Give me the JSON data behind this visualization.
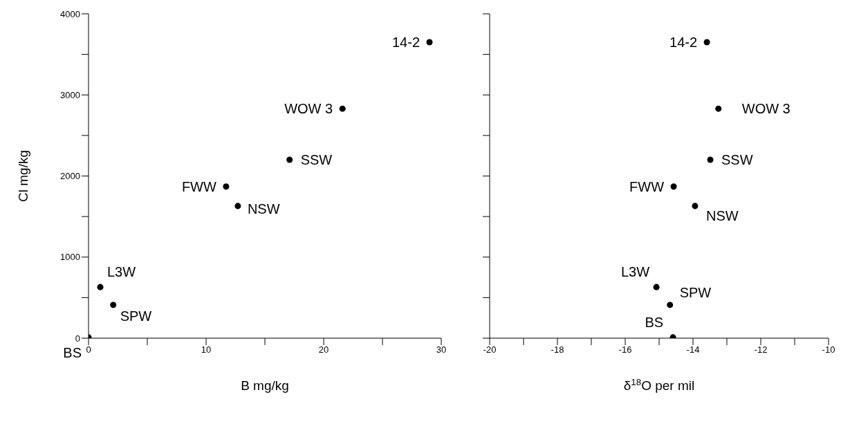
{
  "chart_data": [
    {
      "type": "scatter",
      "xlabel": "B mg/kg",
      "ylabel": "Cl mg/kg",
      "marker": "circle",
      "grid": false,
      "legend": false,
      "x": [
        29,
        21.6,
        17.1,
        11.7,
        12.7,
        1.0,
        2.1,
        0
      ],
      "series": [
        {
          "color": "#000000",
          "values": [
            3650,
            2830,
            2200,
            1870,
            1630,
            630,
            410,
            10
          ]
        }
      ],
      "xlim": [
        0,
        30
      ],
      "xticks": [
        0,
        {
          "value": 5,
          "label": null
        },
        10,
        {
          "value": 15,
          "label": null
        },
        20,
        {
          "value": 25,
          "label": null
        },
        30
      ],
      "ylim": [
        0,
        4000
      ],
      "yticks": [
        0,
        {
          "value": 500,
          "label": null
        },
        1000,
        {
          "value": 1500,
          "label": null
        },
        2000,
        {
          "value": 2500,
          "label": null
        },
        3000,
        {
          "value": 3500,
          "label": null
        },
        4000
      ],
      "annotations": [
        {
          "text": "14-2",
          "x": 29,
          "y": 3650
        },
        {
          "text": "WOW 3",
          "x": 21.6,
          "y": 2830
        },
        {
          "text": "SSW",
          "x": 17.1,
          "y": 2200
        },
        {
          "text": "FWW",
          "x": 11.7,
          "y": 1870
        },
        {
          "text": "NSW",
          "x": 12.7,
          "y": 1630
        },
        {
          "text": "L3W",
          "x": 1.0,
          "y": 630
        },
        {
          "text": "SPW",
          "x": 2.1,
          "y": 410
        },
        {
          "text": "BS",
          "x": 0,
          "y": 10
        }
      ]
    },
    {
      "type": "scatter",
      "xlabel": "δ$^{18}$O per mil",
      "marker": "circle",
      "grid": false,
      "legend": false,
      "tick_labels": "x",
      "x": [
        -13.59,
        -13.25,
        -13.49,
        -14.57,
        -13.94,
        -15.08,
        -14.68,
        -14.59
      ],
      "series": [
        {
          "color": "#000000",
          "values": [
            3650,
            2830,
            2200,
            1870,
            1630,
            630,
            410,
            10
          ]
        }
      ],
      "xlim": [
        -20,
        -10
      ],
      "xticks": [
        -20,
        {
          "value": -19,
          "label": null
        },
        -18,
        {
          "value": -17,
          "label": null
        },
        -16,
        {
          "value": -15,
          "label": null
        },
        -14,
        {
          "value": -13,
          "label": null
        },
        -12,
        {
          "value": -11,
          "label": null
        },
        -10
      ],
      "ylim": [
        0,
        4000
      ],
      "yticks": [
        0,
        {
          "value": 500,
          "label": null
        },
        1000,
        {
          "value": 1500,
          "label": null
        },
        2000,
        {
          "value": 2500,
          "label": null
        },
        3000,
        {
          "value": 3500,
          "label": null
        },
        4000
      ],
      "annotations": [
        {
          "text": "14-2",
          "x": -13.59,
          "y": 3650
        },
        {
          "text": "WOW 3",
          "x": -13.25,
          "y": 2830
        },
        {
          "text": "SSW",
          "x": -13.49,
          "y": 2200
        },
        {
          "text": "FWW",
          "x": -14.57,
          "y": 1870
        },
        {
          "text": "NSW",
          "x": -13.94,
          "y": 1630
        },
        {
          "text": "L3W",
          "x": -15.08,
          "y": 630
        },
        {
          "text": "SPW",
          "x": -14.68,
          "y": 410
        },
        {
          "text": "BS",
          "x": -14.59,
          "y": 10
        }
      ]
    }
  ]
}
